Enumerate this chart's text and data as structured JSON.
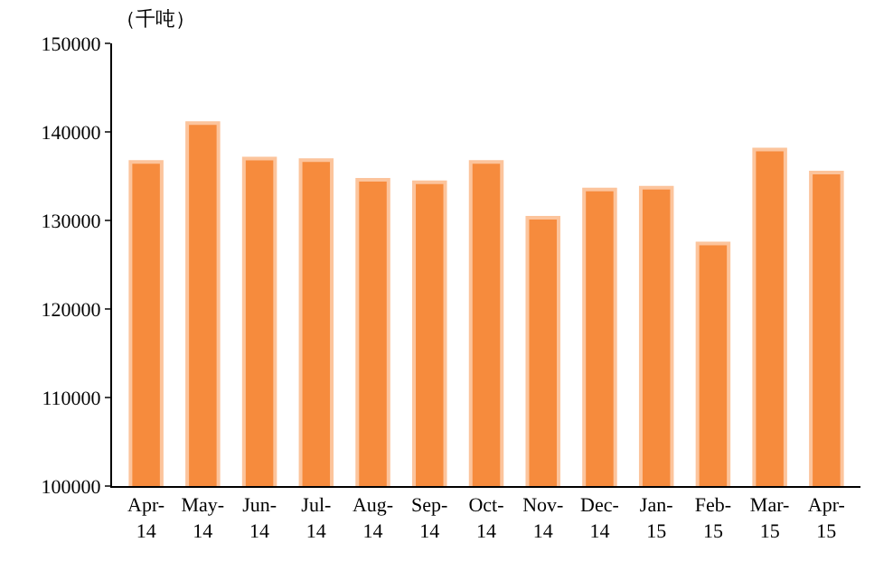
{
  "chart_data": {
    "type": "bar",
    "ylabel": "（千吨）",
    "categories": [
      "Apr-14",
      "May-14",
      "Jun-14",
      "Jul-14",
      "Aug-14",
      "Sep-14",
      "Oct-14",
      "Nov-14",
      "Dec-14",
      "Jan-15",
      "Feb-15",
      "Mar-15",
      "Apr-15"
    ],
    "values": [
      136600,
      141000,
      137000,
      136800,
      134600,
      134300,
      136600,
      130300,
      133500,
      133700,
      127400,
      138000,
      135400
    ],
    "color": "#f68b3d",
    "ylim": [
      100000,
      150000
    ],
    "yticks": [
      100000,
      110000,
      120000,
      130000,
      140000,
      150000
    ]
  }
}
